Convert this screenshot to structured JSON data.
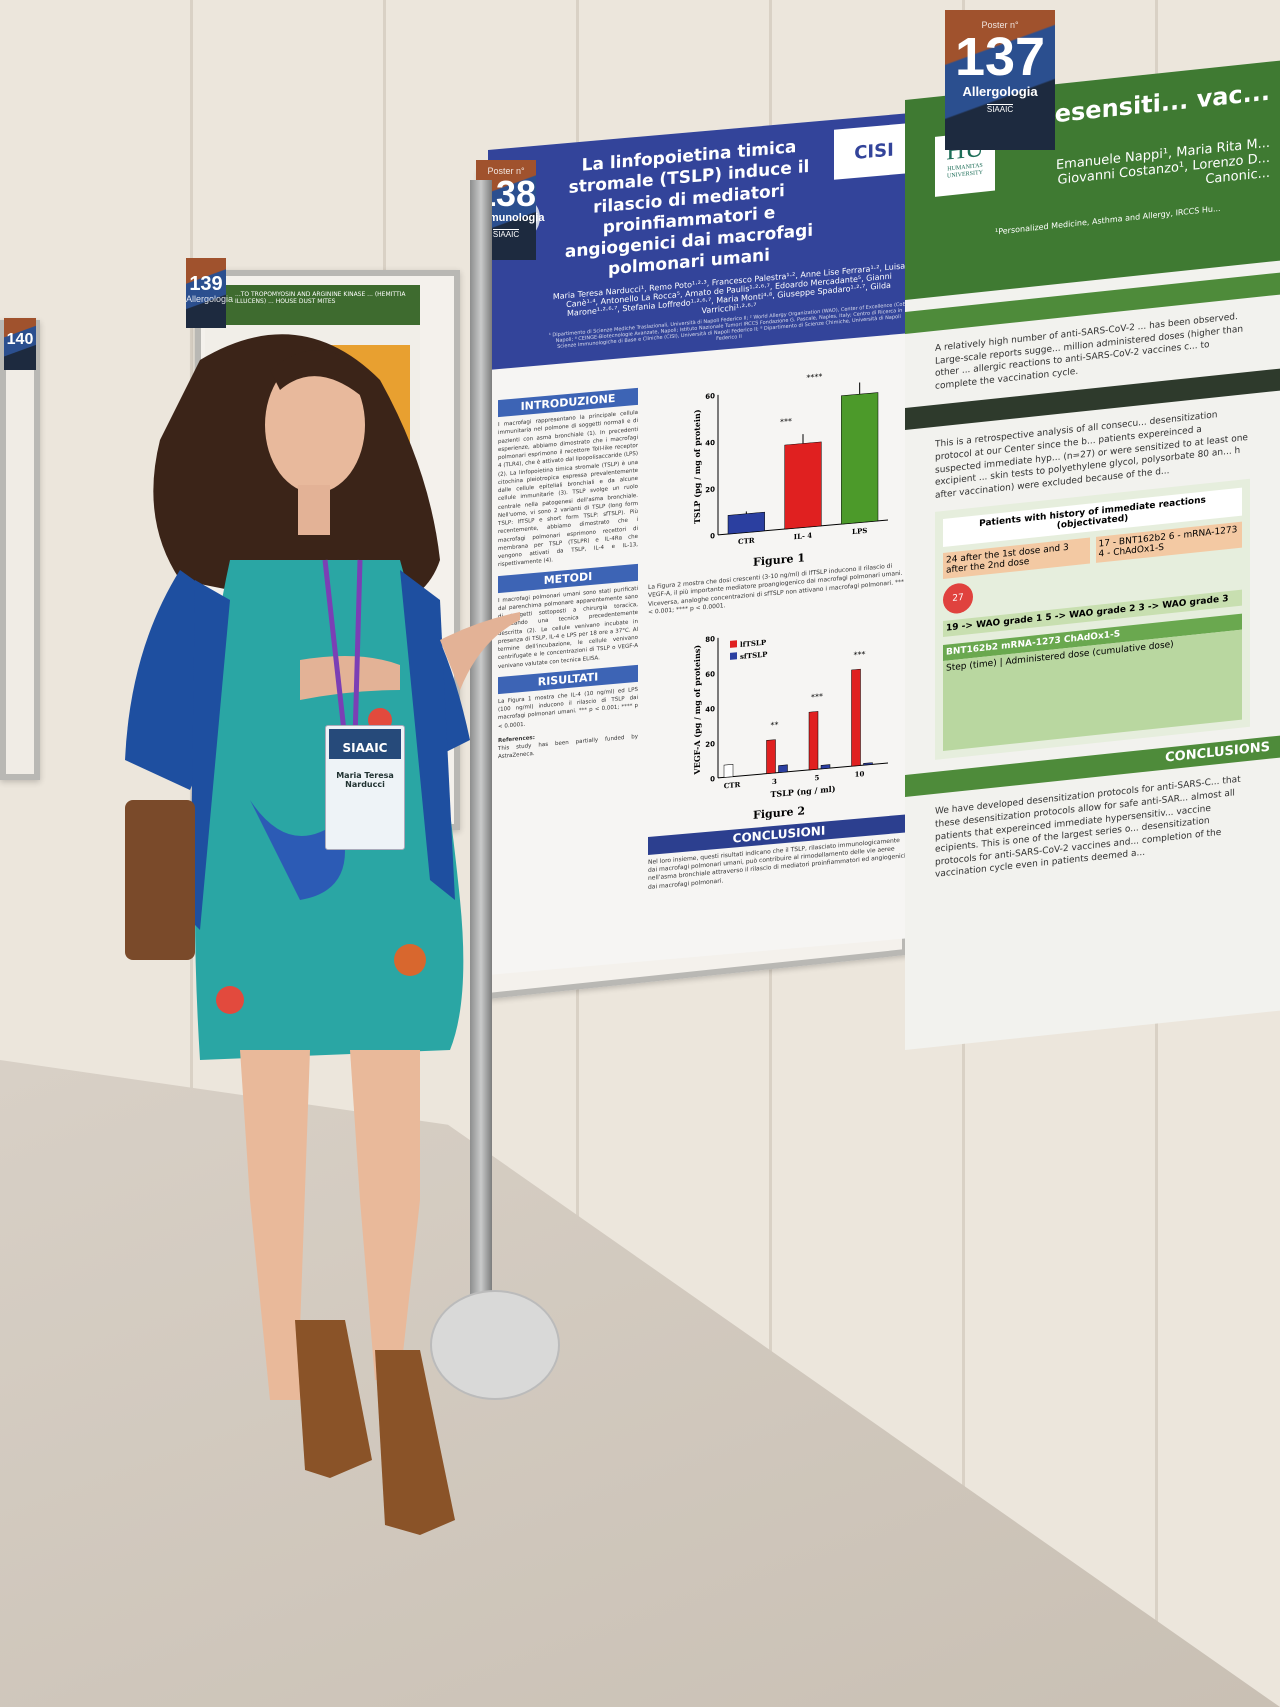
{
  "poster_137": {
    "label": "Poster n°",
    "number": "137",
    "category": "Allergologia",
    "org": "SIAAIC",
    "logo": "HUMANITAS UNIVERSITY",
    "title": "Desensiti... vac...",
    "authors": "Emanuele Nappi¹, Maria Rita M... Giovanni Costanzo¹, Lorenzo D... Canonic...",
    "affiliation": "¹Personalized Medicine, Asthma and Allergy, IRCCS Hu...",
    "intro": "A relatively high number of anti-SARS-CoV-2 ... has been observed. Large-scale reports sugge... million administered doses (higher than other ... allergic reactions to anti-SARS-CoV-2 vaccines c... to complete the vaccination cycle.",
    "methods": "This is a retrospective analysis of all consecu... desensitization protocol at our Center since the b... patients expereinced a suspected immediate hyp... (n=27) or were sensitized to at least one excipient ... skin tests to polyethylene glycol, polysorbate 80 an... h after vaccination) were excluded because of the d...",
    "box_title": "Patients with history of immediate reactions (objectivated)",
    "box_left": "24 after the 1st dose and 3 after the 2nd dose",
    "box_right": "17 - BNT162b2  6 - mRNA-1273  4 - ChAdOx1-S",
    "total": "27",
    "grades": "19 -> WAO grade 1  5 -> WAO grade 2  3 -> WAO grade 3",
    "table_header": "BNT162b2  mRNA-1273  ChAdOx1-S",
    "table_sub": "Step (time) | Administered dose (cumulative dose)",
    "conclusion_title": "CONCLUSIONS",
    "conclusion": "We have developed desensitization protocols for anti-SARS-C... that these desensitization protocols allow for safe anti-SAR... almost all patients that expereinced immediate hypersensitiv... vaccine ecipients. This is one of the largest series o... desensitization protocols for anti-SARS-CoV-2 vaccines and... completion of the vaccination cycle even in patients deemed a..."
  },
  "poster_138": {
    "label": "Poster n°",
    "number": "138",
    "category": "Immunologia",
    "org": "SIAAIC",
    "logo": "CISI",
    "title": "La linfopoietina timica stromale (TSLP) induce il rilascio di mediatori proinfiammatori e angiogenici dai macrofagi polmonari umani",
    "authors": "Maria Teresa Narducci¹, Remo Poto¹·²·³, Francesco Palestra¹·², Anne Lise Ferrara¹·², Luisa Canè¹·⁴, Antonello La Rocca⁵, Amato de Paulis¹·²·⁶·⁷, Edoardo Mercadante⁵, Gianni Marone¹·²·⁶·⁷, Stefania Loffredo¹·²·⁶·⁷, Maria Monti⁴·⁸, Giuseppe Spadaro¹·²·⁷, Gilda Varricchi¹·²·⁶·⁷",
    "affiliations": "¹ Dipartimento di Scienze Mediche Traslazionali, Università di Napoli Federico II; ² World Allergy Organization (WAO), Center of Excellence (CoE), Napoli; ⁴ CEINGE-Biotecnologie Avanzate, Napoli; Istituto Nazionale Tumori IRCCS Fondazione G. Pascale, Naples, Italy; Centro di Ricerca in Scienze Immunologiche di Base e Cliniche (CISI), Università di Napoli Federico II; ⁸ Dipartimento di Scienze Chimiche, Università di Napoli Federico II",
    "sections": {
      "intro_title": "INTRODUZIONE",
      "intro": "I macrofagi rappresentano la principale cellula immunitaria nel polmone di soggetti normali e di pazienti con asma bronchiale (1). In precedenti esperienze, abbiamo dimostrato che i macrofagi polmonari esprimono il recettore Toll-like receptor 4 (TLR4), che è attivato dal lipopolisaccaride (LPS) (2). La linfopoietina timica stromale (TSLP) è una citochina pleiotropica espressa prevalentemente dalle cellule epiteliali bronchiali e da alcune cellule immunitarie (3). TSLP svolge un ruolo centrale nella patogenesi dell'asma bronchiale. Nell'uomo, vi sono 2 varianti di TSLP (long form TSLP: lfTSLP e short form TSLP: sfTSLP). Più recentemente, abbiamo dimostrato che i macrofagi polmonari esprimono recettori di membrana per TSLP (TSLPR) e IL-4Rα che vengono attivati da TSLP, IL-4 e IL-13, rispettivamente (4).",
      "methods_title": "METODI",
      "methods": "I macrofagi polmonari umani sono stati purificati dal parenchima polmonare apparentemente sano di soggetti sottoposti a chirurgia toracica, utilizzando una tecnica precedentemente descritta (2). Le cellule venivano incubate in presenza di TSLP, IL-4 e LPS per 18 ore a 37°C. Al termine dell'incubazione, le cellule venivano centrifugate e le concentrazioni di TSLP o VEGF-A venivano valutate con tecnica ELISA.",
      "results_title": "RISULTATI",
      "results": "La Figura 1 mostra che IL-4 (10 ng/ml) ed LPS (100 ng/ml) inducono il rilascio di TSLP dai macrofagi polmonari umani. *** p < 0.001; **** p < 0.0001.",
      "references_title": "References:",
      "funding": "This study has been partially funded by AstraZeneca.",
      "fig2_text": "La Figura 2 mostra che dosi crescenti (3-10 ng/ml) di lfTSLP inducono il rilascio di VEGF-A, il più importante mediatore proangiogenico dai macrofagi polmonari umani. Viceversa, analoghe concentrazioni di sfTSLP non attivano i macrofagi polmonari. *** p < 0.001; **** p < 0.0001.",
      "conclusion_title": "CONCLUSIONI",
      "conclusion": "Nel loro insieme, questi risultati indicano che il TSLP, rilasciato immunologicamente dai macrofagi polmonari umani, può contribuire al rimodellamento delle vie aeree nell'asma bronchiale attraverso il rilascio di mediatori proinfiammatori ed angiogenici dai macrofagi polmonari."
    }
  },
  "chart_data": [
    {
      "type": "bar",
      "title": "Figure 1",
      "ylabel": "TSLP (pg / mg of protein)",
      "categories": [
        "CTR",
        "IL- 4",
        "LPS"
      ],
      "values": [
        8,
        36,
        55
      ],
      "errors": [
        1,
        4,
        5
      ],
      "colors": [
        "#2b3fa0",
        "#e02020",
        "#4c9a2a"
      ],
      "ylim": [
        0,
        60
      ],
      "yticks": [
        0,
        20,
        40,
        60
      ],
      "annotations": [
        "***",
        "****"
      ]
    },
    {
      "type": "bar",
      "title": "Figure 2",
      "xlabel": "TSLP (ng / ml)",
      "ylabel": "VEGF-A (pg / mg of proteins)",
      "categories": [
        "CTR",
        "3",
        "5",
        "10"
      ],
      "series": [
        {
          "name": "lfTSLP",
          "values": [
            7,
            19,
            33,
            55
          ],
          "color": "#e02020"
        },
        {
          "name": "sfTSLP",
          "values": [
            null,
            4,
            2,
            1
          ],
          "color": "#2b3fa0"
        }
      ],
      "ylim": [
        0,
        80
      ],
      "yticks": [
        0,
        20,
        40,
        60,
        80
      ],
      "annotations": [
        "**",
        "***",
        "***"
      ],
      "legend": "top-left"
    }
  ],
  "poster_139": {
    "number": "139",
    "category": "Allergologia",
    "title": "...TO TROPOMYOSIN AND ARGININE KINASE ... (HEMITTIA ILLUCENS) ... HOUSE DUST MITES"
  },
  "poster_140": {
    "number": "140"
  },
  "badge": {
    "event": "SIAAIC",
    "name": "Maria Teresa Narducci"
  },
  "colors": {
    "poster138_header": "#33449a",
    "poster137_header": "#3f7a32",
    "blazer": "#1e4fa0",
    "dress": "#2aa6a4"
  }
}
